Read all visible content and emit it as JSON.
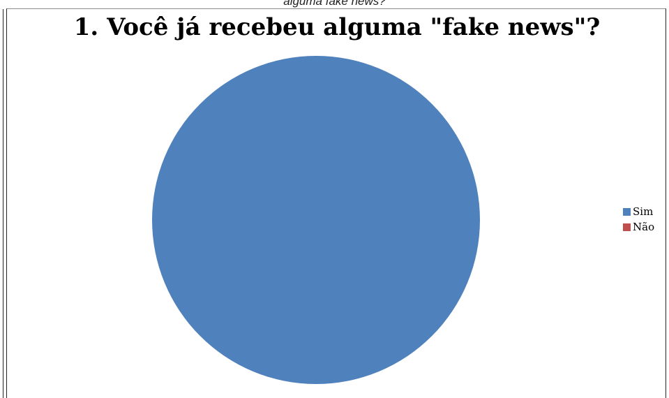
{
  "caption": "alguma fake news?",
  "chart_data": {
    "type": "pie",
    "title": "1. Você já recebeu alguma \"fake news\"?",
    "categories": [
      "Sim",
      "Não"
    ],
    "values": [
      100,
      0
    ],
    "colors": [
      "#4f81bd",
      "#c0504d"
    ],
    "legend": "right"
  }
}
